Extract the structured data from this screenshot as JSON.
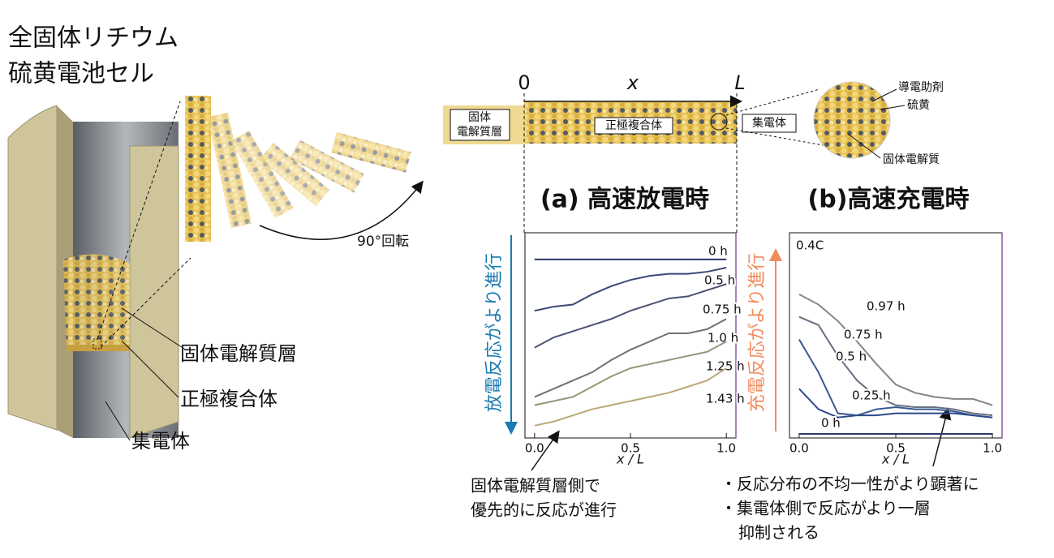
{
  "diagram": {
    "title": [
      "全固体リチウム",
      "硫黄電池セル"
    ],
    "cell_labels": [
      "固体電解質層",
      "正極複合体",
      "集電体"
    ],
    "rotation": "90°回転",
    "strip_axis": [
      "0",
      "x",
      "L"
    ],
    "strip_labels": {
      "electrolyte": [
        "固体",
        "電解質層"
      ],
      "cathode": "正極複合体",
      "collector": "集電体"
    },
    "zoom_labels": [
      "導電助剤",
      "硫黄",
      "固体電解質"
    ],
    "discharge_direction": "放電反応がより進行",
    "charge_direction": "充電反応がより進行",
    "discharge_note": [
      "固体電解質層側で",
      "優先的に反応が進行"
    ],
    "charge_note": [
      "・反応分布の不均一性がより顕著に",
      "・集電体側で反応がより一層",
      "抑制される"
    ]
  },
  "chart_data": [
    {
      "type": "line",
      "title": "(a) 高速放電時",
      "x_label": "x / L",
      "x": [
        0,
        0.1,
        0.2,
        0.3,
        0.4,
        0.5,
        0.6,
        0.7,
        0.8,
        0.9,
        1.0
      ],
      "xlim": [
        -0.05,
        1.05
      ],
      "ylim": [
        0,
        1
      ],
      "xticks": [
        {
          "value": 0,
          "label": "0.0"
        },
        0.5,
        {
          "value": 1,
          "label": "1.0"
        }
      ],
      "series": [
        {
          "name": "0 h",
          "color": "#2b3a6b",
          "values": [
            0.87,
            0.87,
            0.87,
            0.87,
            0.87,
            0.87,
            0.87,
            0.87,
            0.87,
            0.87,
            0.87
          ]
        },
        {
          "name": "0.5 h",
          "color": "#3b4878",
          "values": [
            0.62,
            0.64,
            0.65,
            0.7,
            0.74,
            0.77,
            0.79,
            0.8,
            0.8,
            0.81,
            0.83
          ]
        },
        {
          "name": "0.75 h",
          "color": "#4b5272",
          "values": [
            0.44,
            0.49,
            0.52,
            0.55,
            0.58,
            0.62,
            0.65,
            0.68,
            0.69,
            0.72,
            0.75
          ]
        },
        {
          "name": "1.0 h",
          "color": "#727272",
          "values": [
            0.2,
            0.24,
            0.28,
            0.32,
            0.38,
            0.43,
            0.47,
            0.51,
            0.51,
            0.53,
            0.58
          ]
        },
        {
          "name": "1.25 h",
          "color": "#9a957a",
          "values": [
            0.16,
            0.18,
            0.2,
            0.25,
            0.3,
            0.34,
            0.36,
            0.38,
            0.4,
            0.42,
            0.47
          ]
        },
        {
          "name": "1.43 h",
          "color": "#bba978",
          "values": [
            0.06,
            0.08,
            0.11,
            0.14,
            0.16,
            0.18,
            0.2,
            0.22,
            0.25,
            0.28,
            0.34
          ]
        }
      ]
    },
    {
      "type": "line",
      "title": "(b)高速充電時",
      "x_label": "x / L",
      "annotation": "0.4C",
      "x": [
        0,
        0.1,
        0.2,
        0.3,
        0.4,
        0.5,
        0.6,
        0.7,
        0.8,
        0.9,
        1.0
      ],
      "xlim": [
        -0.05,
        1.05
      ],
      "ylim": [
        0,
        1
      ],
      "xticks": [
        {
          "value": 0,
          "label": "0.0"
        },
        0.5,
        {
          "value": 1,
          "label": "1.0"
        }
      ],
      "series": [
        {
          "name": "0.97 h",
          "color": "#858585",
          "values": [
            0.7,
            0.65,
            0.57,
            0.47,
            0.36,
            0.26,
            0.22,
            0.2,
            0.19,
            0.19,
            0.16
          ]
        },
        {
          "name": "0.75 h",
          "color": "#687080",
          "values": [
            0.59,
            0.55,
            0.4,
            0.28,
            0.2,
            0.16,
            0.15,
            0.15,
            0.14,
            0.12,
            0.11
          ]
        },
        {
          "name": "0.5 h",
          "color": "#3a5a90",
          "values": [
            0.48,
            0.32,
            0.12,
            0.11,
            0.14,
            0.15,
            0.14,
            0.14,
            0.13,
            0.11,
            0.1
          ]
        },
        {
          "name": "0.25 h",
          "color": "#2c4a8a",
          "values": [
            0.24,
            0.14,
            0.1,
            0.11,
            0.11,
            0.12,
            0.12,
            0.12,
            0.12,
            0.11,
            0.1
          ]
        },
        {
          "name": "0 h",
          "color": "#2b3a6b",
          "values": [
            0.02,
            0.02,
            0.02,
            0.02,
            0.02,
            0.02,
            0.02,
            0.02,
            0.02,
            0.02,
            0.02
          ]
        }
      ]
    }
  ]
}
